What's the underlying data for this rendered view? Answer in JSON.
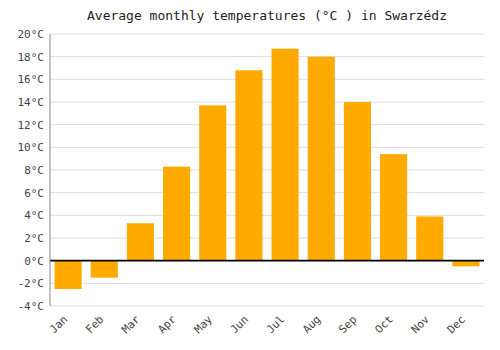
{
  "chart_data": {
    "type": "bar",
    "title": "Average monthly temperatures (°C ) in Swarzédz",
    "categories": [
      "Jan",
      "Feb",
      "Mar",
      "Apr",
      "May",
      "Jun",
      "Jul",
      "Aug",
      "Sep",
      "Oct",
      "Nov",
      "Dec"
    ],
    "values": [
      -2.5,
      -1.5,
      3.3,
      8.3,
      13.7,
      16.8,
      18.7,
      18.0,
      14.0,
      9.4,
      3.9,
      -0.5
    ],
    "color": "#FFAA00",
    "ylim": [
      -4,
      20
    ],
    "yticks": [
      {
        "value": -4,
        "label": "-4°C"
      },
      {
        "value": -2,
        "label": "-2°C"
      },
      {
        "value": 0,
        "label": "0°C"
      },
      {
        "value": 2,
        "label": "2°C"
      },
      {
        "value": 4,
        "label": "4°C"
      },
      {
        "value": 6,
        "label": "6°C"
      },
      {
        "value": 8,
        "label": "8°C"
      },
      {
        "value": 10,
        "label": "10°C"
      },
      {
        "value": 12,
        "label": "12°C"
      },
      {
        "value": 14,
        "label": "14°C"
      },
      {
        "value": 16,
        "label": "16°C"
      },
      {
        "value": 18,
        "label": "18°C"
      },
      {
        "value": 20,
        "label": "20°C"
      }
    ],
    "grid": true
  }
}
